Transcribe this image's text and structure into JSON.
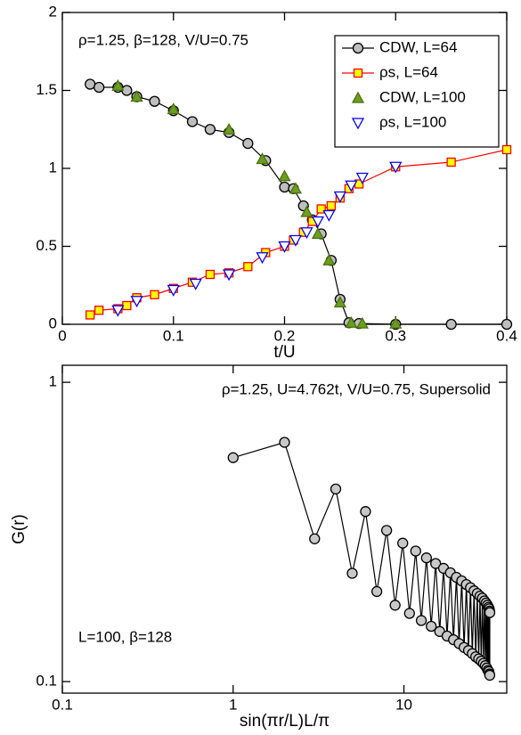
{
  "chart_data": [
    {
      "type": "line",
      "xlabel": "t/U",
      "annotations": [
        "ρ=1.25, β=128, V/U=0.75"
      ],
      "xlim": [
        0,
        0.4
      ],
      "ylim": [
        0,
        2
      ],
      "xticks": [
        0,
        0.1,
        0.2,
        0.3,
        0.4
      ],
      "yticks": [
        0,
        0.5,
        1,
        1.5,
        2
      ],
      "legend": "upper right",
      "series": [
        {
          "name": "CDW, L=64",
          "color": "#000000",
          "fill": "#bebebe",
          "marker": "circle",
          "line": true,
          "x": [
            0.025,
            0.033,
            0.05,
            0.058,
            0.067,
            0.083,
            0.1,
            0.117,
            0.133,
            0.15,
            0.167,
            0.183,
            0.2,
            0.208,
            0.217,
            0.225,
            0.233,
            0.242,
            0.25,
            0.258,
            0.267,
            0.3,
            0.35,
            0.4
          ],
          "values": [
            1.54,
            1.52,
            1.52,
            1.5,
            1.46,
            1.43,
            1.37,
            1.3,
            1.25,
            1.23,
            1.16,
            1.05,
            0.88,
            0.87,
            0.76,
            0.67,
            0.58,
            0.41,
            0.16,
            0.01,
            0.005,
            0,
            0,
            0
          ]
        },
        {
          "name": "ρs, L=64",
          "color": "#ff0000",
          "fill": "#ffff00",
          "marker": "square",
          "line": true,
          "x": [
            0.025,
            0.033,
            0.05,
            0.058,
            0.067,
            0.083,
            0.1,
            0.117,
            0.133,
            0.15,
            0.167,
            0.183,
            0.2,
            0.208,
            0.217,
            0.225,
            0.233,
            0.242,
            0.25,
            0.258,
            0.267,
            0.3,
            0.35,
            0.4
          ],
          "values": [
            0.06,
            0.09,
            0.1,
            0.12,
            0.17,
            0.19,
            0.23,
            0.27,
            0.32,
            0.33,
            0.37,
            0.46,
            0.5,
            0.54,
            0.59,
            0.66,
            0.74,
            0.76,
            0.81,
            0.87,
            0.9,
            1.01,
            1.04,
            1.12
          ]
        },
        {
          "name": "CDW, L=100",
          "color": "#4a6f10",
          "fill": "#6b9e1f",
          "marker": "triangle-up",
          "line": false,
          "x": [
            0.05,
            0.067,
            0.1,
            0.15,
            0.18,
            0.2,
            0.21,
            0.22,
            0.23,
            0.24,
            0.25,
            0.26,
            0.27,
            0.3
          ],
          "values": [
            1.53,
            1.46,
            1.38,
            1.25,
            1.06,
            0.95,
            0.87,
            0.72,
            0.58,
            0.41,
            0.14,
            0.01,
            0.005,
            0.005
          ]
        },
        {
          "name": "ρs, L=100",
          "color": "#0000ff",
          "fill": "#ffffff",
          "marker": "triangle-down",
          "line": false,
          "x": [
            0.05,
            0.067,
            0.1,
            0.12,
            0.15,
            0.18,
            0.2,
            0.21,
            0.22,
            0.23,
            0.24,
            0.25,
            0.26,
            0.27,
            0.3
          ],
          "values": [
            0.09,
            0.15,
            0.22,
            0.26,
            0.32,
            0.43,
            0.5,
            0.54,
            0.59,
            0.66,
            0.7,
            0.82,
            0.89,
            0.94,
            1.01
          ]
        }
      ]
    },
    {
      "type": "line",
      "xlabel": "sin(πr/L)L/π",
      "ylabel": "G(r)",
      "annotations": [
        "ρ=1.25, U=4.762t, V/U=0.75, Supersolid",
        "L=100, β=128"
      ],
      "xlog": true,
      "ylog": true,
      "xlim": [
        0.1,
        40
      ],
      "ylim": [
        0.0915,
        1.14
      ],
      "xticks": [
        0.1,
        1,
        10
      ],
      "yticks": [
        0.1,
        1
      ],
      "series": [
        {
          "color": "#000000",
          "fill": "#c8c8c8",
          "marker": "circle",
          "line": true,
          "x": [
            1.0,
            2.0,
            3.0,
            3.99,
            4.98,
            5.96,
            6.94,
            7.92,
            8.88,
            9.84,
            10.78,
            11.72,
            12.64,
            13.55,
            14.45,
            15.34,
            16.2,
            17.06,
            17.89,
            18.71,
            19.51,
            20.29,
            21.05,
            21.79,
            22.51,
            23.21,
            23.88,
            24.53,
            25.15,
            25.75,
            26.33,
            26.88,
            27.4,
            27.89,
            28.36,
            28.8,
            29.21,
            29.6,
            29.95,
            30.27,
            30.57,
            30.83,
            31.06,
            31.27,
            31.44,
            31.58,
            31.69,
            31.77,
            31.81,
            31.83
          ],
          "values": [
            0.56,
            0.63,
            0.3,
            0.44,
            0.23,
            0.37,
            0.2,
            0.32,
            0.18,
            0.29,
            0.169,
            0.273,
            0.16,
            0.259,
            0.153,
            0.248,
            0.147,
            0.239,
            0.142,
            0.231,
            0.138,
            0.223,
            0.134,
            0.217,
            0.13,
            0.211,
            0.127,
            0.206,
            0.124,
            0.201,
            0.121,
            0.197,
            0.119,
            0.193,
            0.117,
            0.19,
            0.115,
            0.186,
            0.113,
            0.183,
            0.111,
            0.18,
            0.109,
            0.177,
            0.108,
            0.175,
            0.106,
            0.172,
            0.105,
            0.17
          ]
        }
      ]
    }
  ]
}
